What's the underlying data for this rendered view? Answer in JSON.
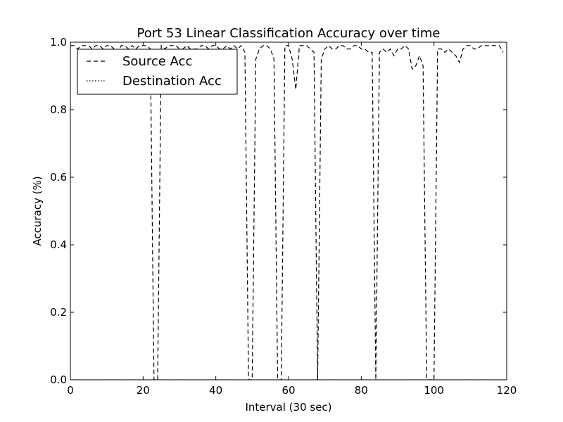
{
  "chart_data": {
    "type": "line",
    "title": "Port 53 Linear Classification Accuracy over time",
    "xlabel": "Interval (30 sec)",
    "ylabel": "Accuracy (%)",
    "xlim": [
      0,
      120
    ],
    "ylim": [
      0.0,
      1.0
    ],
    "xticks": [
      "0",
      "20",
      "40",
      "60",
      "80",
      "100",
      "120"
    ],
    "yticks": [
      "0.0",
      "0.2",
      "0.4",
      "0.6",
      "0.8",
      "1.0"
    ],
    "grid": false,
    "legend_position": "top-left",
    "series": [
      {
        "name": "Source Acc",
        "style": "dashed",
        "color": "#000000",
        "x": [
          0,
          1,
          2,
          3,
          4,
          5,
          6,
          7,
          8,
          9,
          10,
          11,
          12,
          13,
          14,
          15,
          16,
          17,
          18,
          19,
          20,
          21,
          22,
          23,
          24,
          25,
          26,
          27,
          28,
          29,
          30,
          31,
          32,
          33,
          34,
          35,
          36,
          37,
          38,
          39,
          40,
          41,
          42,
          43,
          44,
          45,
          46,
          47,
          48,
          49,
          50,
          51,
          52,
          53,
          54,
          55,
          56,
          57,
          58,
          59,
          60,
          61,
          62,
          63,
          64,
          65,
          66,
          67,
          68,
          69,
          70,
          71,
          72,
          73,
          74,
          75,
          76,
          77,
          78,
          79,
          80,
          81,
          82,
          83,
          84,
          85,
          86,
          87,
          88,
          89,
          90,
          91,
          92,
          93,
          94,
          95,
          96,
          97,
          98,
          99,
          100,
          101,
          102,
          103,
          104,
          105,
          106,
          107,
          108,
          109,
          110,
          111,
          112,
          113,
          114,
          115,
          116,
          117,
          118,
          119
        ],
        "values": [
          0.99,
          0.99,
          0.98,
          0.99,
          0.99,
          0.99,
          0.98,
          0.99,
          0.99,
          0.98,
          0.99,
          0.99,
          0.98,
          0.97,
          0.99,
          0.99,
          0.98,
          0.99,
          0.98,
          0.99,
          0.99,
          0.99,
          0.98,
          0.0,
          0.0,
          0.99,
          0.98,
          0.99,
          0.99,
          0.99,
          0.98,
          0.98,
          0.99,
          0.98,
          0.98,
          0.98,
          0.99,
          0.99,
          0.98,
          0.99,
          0.99,
          0.98,
          0.98,
          0.99,
          0.98,
          0.99,
          0.98,
          0.99,
          0.97,
          0.0,
          0.0,
          0.95,
          0.98,
          0.99,
          0.99,
          0.98,
          0.95,
          0.0,
          0.0,
          0.99,
          0.99,
          0.95,
          0.86,
          0.99,
          0.99,
          0.99,
          0.98,
          0.97,
          0.0,
          0.95,
          0.98,
          0.99,
          0.98,
          0.98,
          0.99,
          0.99,
          0.98,
          0.98,
          0.99,
          0.99,
          0.98,
          0.98,
          0.97,
          0.97,
          0.0,
          0.97,
          0.98,
          0.97,
          0.98,
          0.96,
          0.98,
          0.98,
          0.99,
          0.98,
          0.92,
          0.93,
          0.96,
          0.93,
          0.0,
          0.0,
          0.0,
          0.98,
          0.98,
          0.97,
          0.98,
          0.97,
          0.96,
          0.94,
          0.98,
          0.99,
          0.99,
          0.98,
          0.98,
          0.99,
          0.99,
          0.99,
          0.99,
          0.99,
          0.99,
          0.97
        ]
      },
      {
        "name": "Destination Acc",
        "style": "dotted",
        "color": "#000000",
        "x": [
          0,
          120
        ],
        "values": [
          0.0,
          0.0
        ]
      }
    ]
  }
}
